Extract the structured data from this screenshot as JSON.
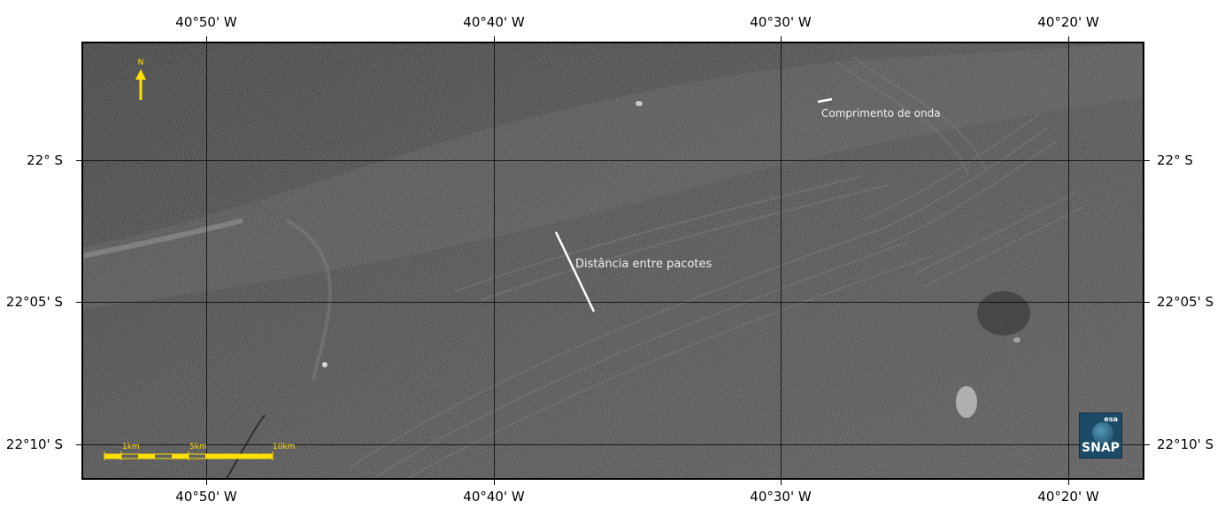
{
  "map": {
    "lon_labels_top": [
      "40°50' W",
      "40°40' W",
      "40°30' W",
      "40°20' W"
    ],
    "lon_labels_bottom": [
      "40°50' W",
      "40°40' W",
      "40°30' W",
      "40°20' W"
    ],
    "lat_labels_left": [
      "22° S",
      "22°05' S",
      "22°10' S"
    ],
    "lat_labels_right": [
      "22° S",
      "22°05' S",
      "22°10' S"
    ],
    "annotations": {
      "wavelength": "Comprimento de onda",
      "packet_distance": "Distância entre pacotes"
    },
    "north_arrow": {
      "label": "N",
      "icon": "north-arrow-icon",
      "color": "#ffe000"
    },
    "scale_bar": {
      "labels": [
        "1km",
        "5km",
        "10km"
      ],
      "color": "#ffe000"
    },
    "logo": {
      "agency": "esa",
      "product": "SNAP"
    }
  }
}
